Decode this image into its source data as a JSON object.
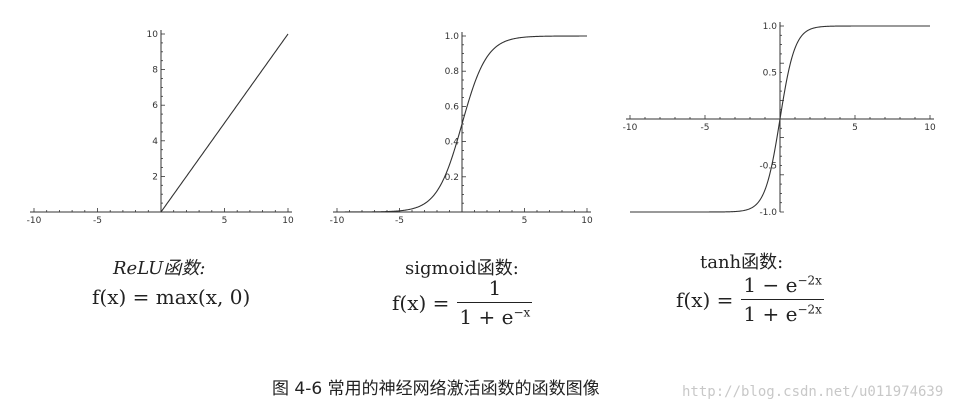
{
  "chart_data": [
    {
      "type": "line",
      "function": "relu",
      "x": [
        -10,
        0,
        10
      ],
      "y": [
        0,
        0,
        10
      ],
      "xlim": [
        -10,
        10
      ],
      "ylim": [
        0,
        10
      ],
      "x_ticks": [
        "-10",
        "-5",
        "5",
        "10"
      ],
      "y_ticks": [
        "2",
        "4",
        "6",
        "8",
        "10"
      ],
      "x_tick_values": [
        -10,
        -5,
        5,
        10
      ],
      "y_tick_values": [
        2,
        4,
        6,
        8,
        10
      ]
    },
    {
      "type": "line",
      "function": "sigmoid",
      "x": [
        -10,
        -6,
        -4,
        -3,
        -2,
        -1,
        0,
        1,
        2,
        3,
        4,
        6,
        10
      ],
      "y": [
        0.0,
        0.002,
        0.018,
        0.047,
        0.119,
        0.269,
        0.5,
        0.731,
        0.881,
        0.953,
        0.982,
        0.998,
        1.0
      ],
      "xlim": [
        -10,
        10
      ],
      "ylim": [
        0,
        1.0
      ],
      "x_ticks": [
        "-10",
        "-5",
        "5",
        "10"
      ],
      "y_ticks": [
        "0.2",
        "0.4",
        "0.6",
        "0.8",
        "1.0"
      ],
      "x_tick_values": [
        -10,
        -5,
        5,
        10
      ],
      "y_tick_values": [
        0.2,
        0.4,
        0.6,
        0.8,
        1.0
      ]
    },
    {
      "type": "line",
      "function": "tanh",
      "x": [
        -10,
        -4,
        -3,
        -2,
        -1,
        0,
        1,
        2,
        3,
        4,
        10
      ],
      "y": [
        -1.0,
        -0.999,
        -0.995,
        -0.964,
        -0.762,
        0,
        0.762,
        0.964,
        0.995,
        0.999,
        1.0
      ],
      "xlim": [
        -10,
        10
      ],
      "ylim": [
        -1.0,
        1.0
      ],
      "x_ticks": [
        "-10",
        "-5",
        "5",
        "10"
      ],
      "y_ticks": [
        "-1.0",
        "-0.5",
        "0.5",
        "1.0"
      ],
      "x_tick_values": [
        -10,
        -5,
        5,
        10
      ],
      "y_tick_values": [
        -1.0,
        -0.5,
        0.5,
        1.0
      ]
    }
  ],
  "captions": {
    "relu_name": "ReLU函数:",
    "relu_formula": "f(x) = max(x, 0)",
    "sigmoid_name": "sigmoid函数:",
    "sigmoid_lhs": "f(x) =",
    "sigmoid_num": "1",
    "sigmoid_den_base": "1 + e",
    "sigmoid_den_exp": "−x",
    "tanh_name": "tanh函数:",
    "tanh_lhs": "f(x) =",
    "tanh_num_base": "1 − e",
    "tanh_num_exp": "−2x",
    "tanh_den_base": "1 + e",
    "tanh_den_exp": "−2x"
  },
  "figure_caption": "图 4-6   常用的神经网络激活函数的函数图像",
  "watermark": "http://blog.csdn.net/u011974639"
}
